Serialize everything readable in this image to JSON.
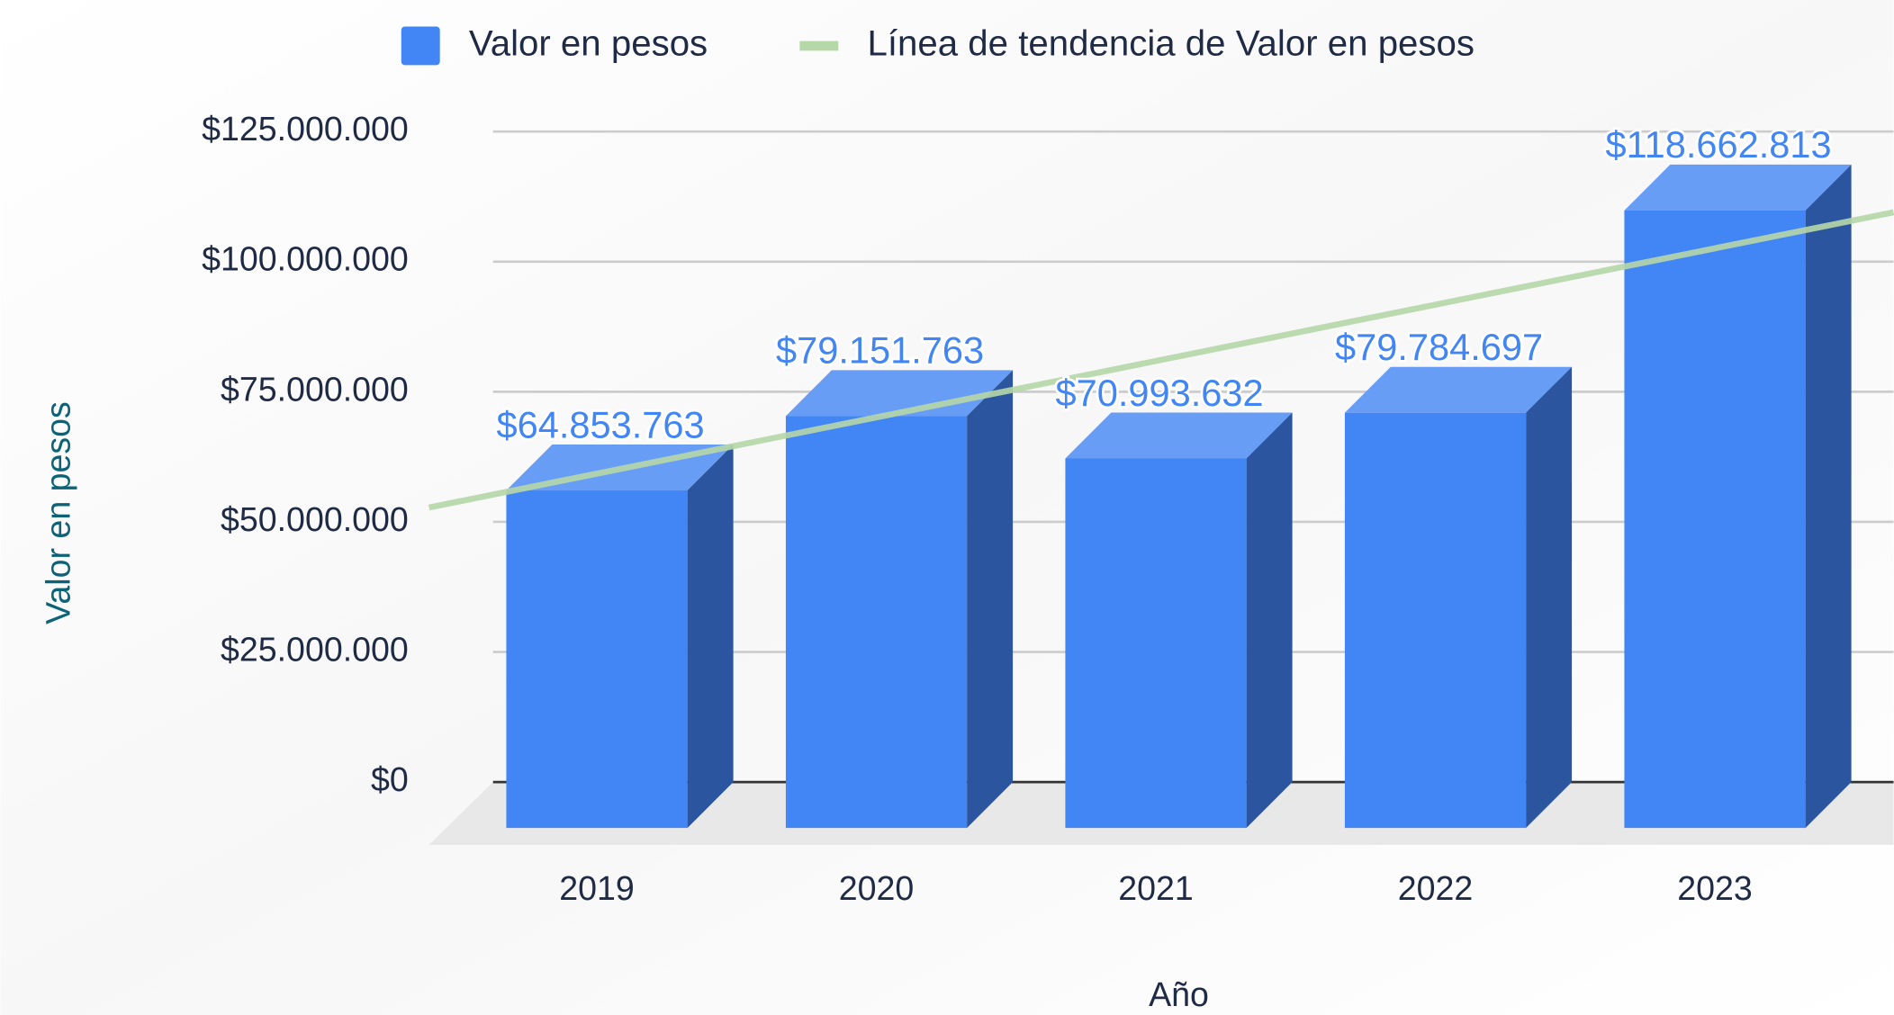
{
  "chart_data": {
    "type": "bar3d",
    "x_label": "Año",
    "y_label": "Valor en pesos",
    "categories": [
      "2019",
      "2020",
      "2021",
      "2022",
      "2023"
    ],
    "series": [
      {
        "name": "Valor en pesos",
        "color": "#4285f4",
        "values": [
          64853763,
          79151763,
          70993632,
          79784697,
          118662813
        ],
        "value_labels": [
          "$64.853.763",
          "$79.151.763",
          "$70.993.632",
          "$79.784.697",
          "$118.662.813"
        ]
      }
    ],
    "trendline": {
      "name": "Línea de tendencia de Valor en pesos",
      "color": "#b6d7a8"
    },
    "ylim": [
      0,
      125000000
    ],
    "yticks": [
      {
        "value": 0,
        "label": "$0"
      },
      {
        "value": 25000000,
        "label": "$25.000.000"
      },
      {
        "value": 50000000,
        "label": "$50.000.000"
      },
      {
        "value": 75000000,
        "label": "$75.000.000"
      },
      {
        "value": 100000000,
        "label": "$100.000.000"
      },
      {
        "value": 125000000,
        "label": "$125.000.000"
      }
    ],
    "grid": true,
    "legend": "top"
  }
}
